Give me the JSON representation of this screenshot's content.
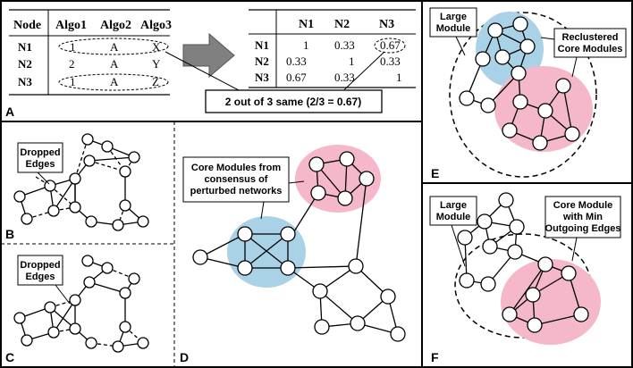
{
  "panels": {
    "A": "A",
    "B": "B",
    "C": "C",
    "D": "D",
    "E": "E",
    "F": "F"
  },
  "panel_a": {
    "left_table": {
      "headers": [
        "Node",
        "Algo1",
        "Algo2",
        "Algo3"
      ],
      "rows": [
        [
          "N1",
          "1",
          "A",
          "X"
        ],
        [
          "N2",
          "2",
          "A",
          "Y"
        ],
        [
          "N3",
          "1",
          "A",
          "Z"
        ]
      ]
    },
    "right_table": {
      "headers": [
        "",
        "N1",
        "N2",
        "N3"
      ],
      "rows": [
        [
          "N1",
          "1",
          "0.33",
          "0.67"
        ],
        [
          "N2",
          "0.33",
          "1",
          "0.33"
        ],
        [
          "N3",
          "0.67",
          "0.33",
          "1"
        ]
      ]
    },
    "callout": "2 out of 3 same (2/3 = 0.67)"
  },
  "panel_b": {
    "label": "Dropped Edges"
  },
  "panel_c": {
    "label": "Dropped Edges"
  },
  "panel_d": {
    "label": [
      "Core Modules from",
      "consensus of",
      "perturbed networks"
    ]
  },
  "panel_e": {
    "module_label": [
      "Large",
      "Module"
    ],
    "core_label": [
      "Reclustered",
      "Core Modules"
    ]
  },
  "panel_f": {
    "module_label": [
      "Large",
      "Module"
    ],
    "core_label": [
      "Core Module",
      "with Min",
      "Outgoing Edges"
    ]
  },
  "colors": {
    "blue_module": "#a9d2e6",
    "pink_module": "#f5b8c8",
    "border": "#000000",
    "arrow": "#808080"
  }
}
